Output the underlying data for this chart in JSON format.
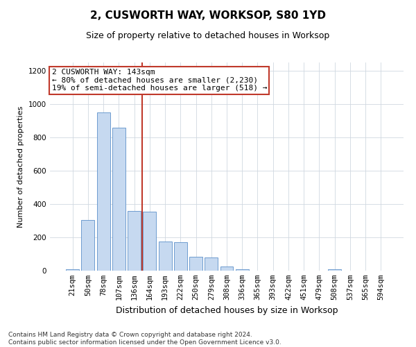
{
  "title": "2, CUSWORTH WAY, WORKSOP, S80 1YD",
  "subtitle": "Size of property relative to detached houses in Worksop",
  "xlabel": "Distribution of detached houses by size in Worksop",
  "ylabel": "Number of detached properties",
  "categories": [
    "21sqm",
    "50sqm",
    "78sqm",
    "107sqm",
    "136sqm",
    "164sqm",
    "193sqm",
    "222sqm",
    "250sqm",
    "279sqm",
    "308sqm",
    "336sqm",
    "365sqm",
    "393sqm",
    "422sqm",
    "451sqm",
    "479sqm",
    "508sqm",
    "537sqm",
    "565sqm",
    "594sqm"
  ],
  "values": [
    10,
    305,
    950,
    860,
    360,
    355,
    175,
    170,
    85,
    80,
    25,
    10,
    0,
    0,
    0,
    0,
    0,
    10,
    0,
    0,
    0
  ],
  "bar_color": "#c6d9f0",
  "bar_edge_color": "#5b8fc9",
  "vline_x_index": 4.5,
  "vline_color": "#c0392b",
  "annotation_line1": "2 CUSWORTH WAY: 143sqm",
  "annotation_line2": "← 80% of detached houses are smaller (2,230)",
  "annotation_line3": "19% of semi-detached houses are larger (518) →",
  "annotation_box_color": "#ffffff",
  "annotation_box_edge_color": "#c0392b",
  "ylim": [
    0,
    1250
  ],
  "yticks": [
    0,
    200,
    400,
    600,
    800,
    1000,
    1200
  ],
  "grid_color": "#d0d8e0",
  "background_color": "#ffffff",
  "footer": "Contains HM Land Registry data © Crown copyright and database right 2024.\nContains public sector information licensed under the Open Government Licence v3.0.",
  "title_fontsize": 11,
  "subtitle_fontsize": 9,
  "xlabel_fontsize": 9,
  "ylabel_fontsize": 8,
  "tick_fontsize": 7.5,
  "footer_fontsize": 6.5,
  "annot_fontsize": 8
}
